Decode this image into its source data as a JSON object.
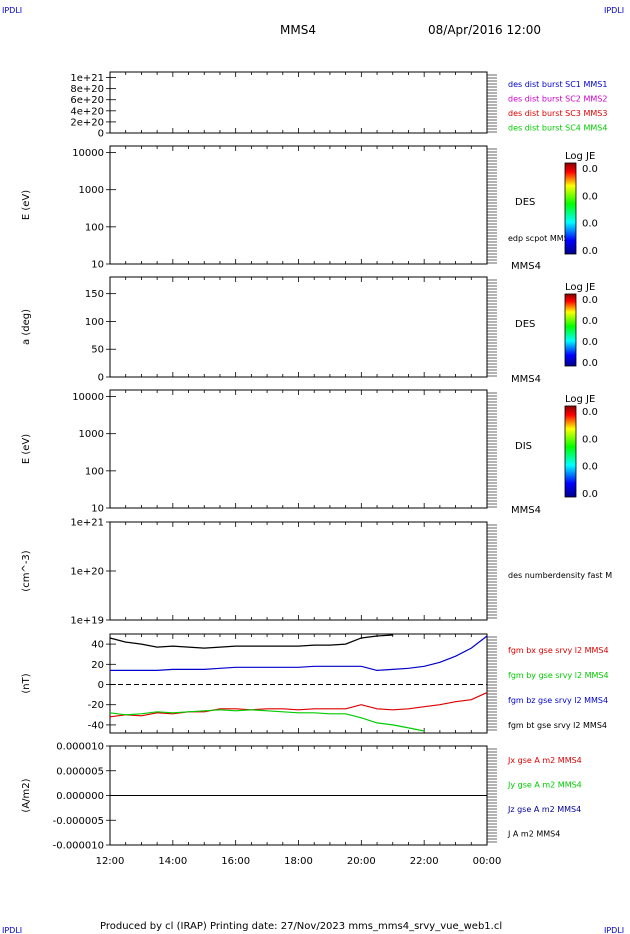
{
  "header": {
    "left_tag": "IPDLI",
    "right_tag": "IPDLI",
    "title": "MMS4",
    "date": "08/Apr/2016 12:00"
  },
  "footer": {
    "text": "Produced by cl (IRAP)   Printing date: 27/Nov/2023   mms_mms4_srvy_vue_web1.cl",
    "left_tag": "IPDLI",
    "right_tag": "IPDLI"
  },
  "time_axis": {
    "ticks": [
      "12:00",
      "14:00",
      "16:00",
      "18:00",
      "20:00",
      "22:00",
      "00:00"
    ]
  },
  "colors": {
    "black": "#000000",
    "blue": "#0000cc",
    "green": "#00cc00",
    "red": "#dd0000",
    "magenta": "#cc00cc",
    "navy": "#000099"
  },
  "colorbar": {
    "title": "Log JE",
    "values": [
      "0.0",
      "0.0",
      "0.0",
      "0.0"
    ]
  },
  "chart_data": [
    {
      "type": "line",
      "ytick_labels": [
        "1e+21",
        "8e+20",
        "6e+20",
        "4e+20",
        "2e+20",
        "0"
      ],
      "ylim": [
        0,
        1.1e+21
      ],
      "reference_line": 0,
      "legend": [
        {
          "label": "des dist burst SC1 MMS1",
          "color": "#0000cc"
        },
        {
          "label": "des dist burst SC2 MMS2",
          "color": "#cc00cc"
        },
        {
          "label": "des dist burst SC3 MMS3",
          "color": "#dd0000"
        },
        {
          "label": "des dist burst SC4 MMS4",
          "color": "#00cc00"
        }
      ]
    },
    {
      "type": "heatmap",
      "ylabel": "E (eV)",
      "yscale": "log",
      "ylim": [
        10,
        15000
      ],
      "ytick_labels": [
        "10000",
        "1000",
        "100",
        "10"
      ],
      "label": "DES",
      "annotation": "edp scpot MMS4",
      "bottom_label": "MMS4"
    },
    {
      "type": "heatmap",
      "ylabel": "a (deg)",
      "ylim": [
        0,
        180
      ],
      "ytick_labels": [
        "150",
        "100",
        "50",
        "0"
      ],
      "label": "DES",
      "bottom_label": "MMS4"
    },
    {
      "type": "heatmap",
      "ylabel": "E (eV)",
      "yscale": "log",
      "ylim": [
        10,
        15000
      ],
      "ytick_labels": [
        "10000",
        "1000",
        "100",
        "10"
      ],
      "label": "DIS",
      "bottom_label": "MMS4"
    },
    {
      "type": "line",
      "ylabel": "(cm^-3)",
      "yscale": "log",
      "ylim": [
        1e+19,
        1e+21
      ],
      "ytick_labels": [
        "1e+21",
        "1e+20",
        "1e+19"
      ],
      "legend": [
        {
          "label": "des numberdensity fast M",
          "color": "#000000"
        }
      ]
    },
    {
      "type": "line",
      "ylabel": "(nT)",
      "ylim": [
        -48,
        50
      ],
      "ytick_labels": [
        "40",
        "20",
        "0",
        "-20",
        "-40"
      ],
      "reference_line": 0,
      "x_hours": [
        12.0,
        12.5,
        13.0,
        13.5,
        14.0,
        14.5,
        15.0,
        15.5,
        16.0,
        16.5,
        17.0,
        17.5,
        18.0,
        18.5,
        19.0,
        19.5,
        20.0,
        20.5,
        21.0,
        21.5,
        22.0,
        22.5,
        23.0,
        23.5,
        24.0
      ],
      "series": [
        {
          "name": "fgm bx gse srvy l2 MMS4",
          "color": "#dd0000",
          "values": [
            -32,
            -30,
            -31,
            -28,
            -29,
            -27,
            -27,
            -24,
            -24,
            -25,
            -24,
            -24,
            -25,
            -24,
            -24,
            -24,
            -20,
            -24,
            -25,
            -24,
            -22,
            -20,
            -17,
            -15,
            -8
          ]
        },
        {
          "name": "fgm by gse srvy l2 MMS4",
          "color": "#00cc00",
          "values": [
            -28,
            -30,
            -29,
            -27,
            -28,
            -27,
            -26,
            -25,
            -26,
            -25,
            -26,
            -27,
            -28,
            -28,
            -29,
            -29,
            -33,
            -38,
            -40,
            -43,
            -46,
            null,
            null,
            null,
            null
          ]
        },
        {
          "name": "fgm bz gse srvy l2 MMS4",
          "color": "#0000cc",
          "values": [
            14,
            14,
            14,
            14,
            15,
            15,
            15,
            16,
            17,
            17,
            17,
            17,
            17,
            18,
            18,
            18,
            18,
            14,
            15,
            16,
            18,
            22,
            28,
            36,
            48
          ]
        },
        {
          "name": "fgm bt gse srvy l2 MMS4",
          "color": "#000000",
          "values": [
            46,
            42,
            40,
            37,
            38,
            37,
            36,
            37,
            38,
            38,
            38,
            38,
            38,
            39,
            39,
            40,
            46,
            48,
            49,
            null,
            null,
            null,
            null,
            null,
            null
          ]
        }
      ]
    },
    {
      "type": "line",
      "ylabel": "(A/m2)",
      "ylim": [
        -1e-05,
        1e-05
      ],
      "ytick_labels": [
        "0.000010",
        "0.000005",
        "0.000000",
        "-0.000005",
        "-0.000010"
      ],
      "reference_line": 0,
      "series": [
        {
          "name": "Jx gse A m2 MMS4",
          "color": "#dd0000"
        },
        {
          "name": "Jy gse A m2 MMS4",
          "color": "#00cc00"
        },
        {
          "name": "Jz gse A m2 MMS4",
          "color": "#000099"
        },
        {
          "name": "J A m2 MMS4",
          "color": "#000000"
        }
      ]
    }
  ]
}
